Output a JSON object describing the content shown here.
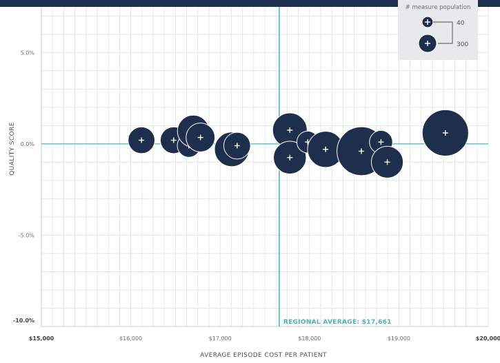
{
  "chart_data": {
    "type": "scatter",
    "title": "",
    "xlabel": "AVERAGE EPISODE COST PER PATIENT",
    "ylabel": "QUALITY SCORE",
    "xlim": [
      15000,
      20000
    ],
    "ylim": [
      -10,
      7.5
    ],
    "x_ticks": [
      {
        "value": 15000,
        "label": "$15,000"
      },
      {
        "value": 16000,
        "label": "$16,000"
      },
      {
        "value": 17000,
        "label": "$17,000"
      },
      {
        "value": 18000,
        "label": "$18,000"
      },
      {
        "value": 19000,
        "label": "$19,000"
      },
      {
        "value": 20000,
        "label": "$20,000"
      }
    ],
    "y_ticks": [
      {
        "value": 5,
        "label": "5.0%"
      },
      {
        "value": 0,
        "label": "0.0%"
      },
      {
        "value": -5,
        "label": "-5.0%"
      },
      {
        "value": -10,
        "label": "-10.0%"
      }
    ],
    "grid": true,
    "reference_lines": {
      "vertical": {
        "x": 17661,
        "label": "REGIONAL AVERAGE: $17,661"
      },
      "horizontal": {
        "y": 0
      }
    },
    "series": [
      {
        "points": [
          {
            "x": 16120,
            "y": 0.2,
            "size": 60
          },
          {
            "x": 16480,
            "y": 0.2,
            "size": 60
          },
          {
            "x": 16650,
            "y": -0.1,
            "size": 45
          },
          {
            "x": 16700,
            "y": 0.7,
            "size": 85
          },
          {
            "x": 16780,
            "y": 0.35,
            "size": 70
          },
          {
            "x": 17130,
            "y": -0.3,
            "size": 100
          },
          {
            "x": 17190,
            "y": -0.1,
            "size": 60
          },
          {
            "x": 17780,
            "y": 0.75,
            "size": 100
          },
          {
            "x": 17780,
            "y": -0.75,
            "size": 90
          },
          {
            "x": 17980,
            "y": 0.1,
            "size": 40
          },
          {
            "x": 18180,
            "y": -0.3,
            "size": 110
          },
          {
            "x": 18580,
            "y": -0.4,
            "size": 200
          },
          {
            "x": 18800,
            "y": 0.1,
            "size": 45
          },
          {
            "x": 18870,
            "y": -1.0,
            "size": 85
          },
          {
            "x": 19520,
            "y": 0.6,
            "size": 180
          }
        ]
      }
    ],
    "legend": {
      "title": "# measure population",
      "placement": "top-right",
      "entries": [
        {
          "label": "40",
          "size": 40
        },
        {
          "label": "300",
          "size": 300
        }
      ]
    },
    "colors": {
      "bubble": "#1e2f4d",
      "reference_line": "#6ec1c1",
      "grid": "#e4e6e8",
      "header_bar": "#1e2f4d",
      "legend_bg": "#e8e9eb",
      "axis_text": "#6b6f75"
    }
  }
}
